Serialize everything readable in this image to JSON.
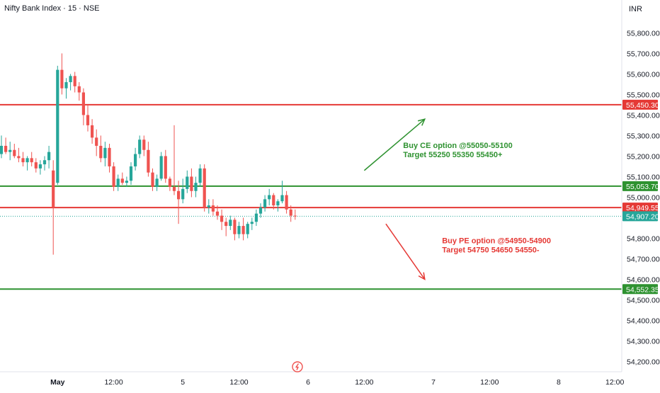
{
  "header": {
    "symbol_title": "Nifty Bank Index · 15 · NSE",
    "currency": "INR"
  },
  "colors": {
    "up": "#26a69a",
    "down": "#ef5350",
    "green_line": "#2e9230",
    "red_line": "#e53935",
    "last_price_line": "#26a69a"
  },
  "chart_data": {
    "type": "candlestick",
    "title": "Nifty Bank Index · 15 · NSE",
    "y_unit": "INR",
    "ylim": [
      54150,
      55960
    ],
    "y_ticks": [
      54200,
      54300,
      54400,
      54500,
      54600,
      54700,
      54800,
      55000,
      55100,
      55200,
      55300,
      55400,
      55500,
      55600,
      55700,
      55800
    ],
    "y_tick_labels": [
      "54,200.00",
      "54,300.00",
      "54,400.00",
      "54,500.00",
      "54,600.00",
      "54,700.00",
      "54,800.00",
      "55,000.00",
      "55,100.00",
      "55,200.00",
      "55,300.00",
      "55,400.00",
      "55,500.00",
      "55,600.00",
      "55,700.00",
      "55,800.00"
    ],
    "x_labels": [
      {
        "label": "May",
        "bar": 13
      },
      {
        "label": "12:00",
        "bar": 26
      },
      {
        "label": "5",
        "bar": 42
      },
      {
        "label": "12:00",
        "bar": 55
      },
      {
        "label": "6",
        "bar": 71
      },
      {
        "label": "12:00",
        "bar": 84
      },
      {
        "label": "7",
        "bar": 100
      },
      {
        "label": "12:00",
        "bar": 113
      },
      {
        "label": "8",
        "bar": 129
      },
      {
        "label": "12:00",
        "bar": 142
      }
    ],
    "candles": [
      {
        "o": 55210,
        "h": 55300,
        "l": 55190,
        "c": 55250
      },
      {
        "o": 55250,
        "h": 55290,
        "l": 55210,
        "c": 55220
      },
      {
        "o": 55220,
        "h": 55270,
        "l": 55180,
        "c": 55230
      },
      {
        "o": 55230,
        "h": 55260,
        "l": 55190,
        "c": 55200
      },
      {
        "o": 55200,
        "h": 55240,
        "l": 55170,
        "c": 55190
      },
      {
        "o": 55190,
        "h": 55220,
        "l": 55150,
        "c": 55170
      },
      {
        "o": 55170,
        "h": 55200,
        "l": 55130,
        "c": 55190
      },
      {
        "o": 55190,
        "h": 55220,
        "l": 55150,
        "c": 55170
      },
      {
        "o": 55170,
        "h": 55190,
        "l": 55120,
        "c": 55140
      },
      {
        "o": 55140,
        "h": 55180,
        "l": 55110,
        "c": 55160
      },
      {
        "o": 55160,
        "h": 55200,
        "l": 55130,
        "c": 55180
      },
      {
        "o": 55180,
        "h": 55250,
        "l": 55140,
        "c": 55220
      },
      {
        "o": 55130,
        "h": 55180,
        "l": 54720,
        "c": 54950
      },
      {
        "o": 55070,
        "h": 55640,
        "l": 55060,
        "c": 55620
      },
      {
        "o": 55620,
        "h": 55700,
        "l": 55500,
        "c": 55530
      },
      {
        "o": 55530,
        "h": 55580,
        "l": 55480,
        "c": 55560
      },
      {
        "o": 55560,
        "h": 55600,
        "l": 55520,
        "c": 55590
      },
      {
        "o": 55590,
        "h": 55610,
        "l": 55510,
        "c": 55540
      },
      {
        "o": 55540,
        "h": 55560,
        "l": 55470,
        "c": 55510
      },
      {
        "o": 55510,
        "h": 55530,
        "l": 55350,
        "c": 55400
      },
      {
        "o": 55400,
        "h": 55450,
        "l": 55320,
        "c": 55350
      },
      {
        "o": 55350,
        "h": 55380,
        "l": 55260,
        "c": 55290
      },
      {
        "o": 55290,
        "h": 55330,
        "l": 55200,
        "c": 55250
      },
      {
        "o": 55250,
        "h": 55300,
        "l": 55170,
        "c": 55190
      },
      {
        "o": 55190,
        "h": 55270,
        "l": 55150,
        "c": 55240
      },
      {
        "o": 55240,
        "h": 55260,
        "l": 55120,
        "c": 55150
      },
      {
        "o": 55150,
        "h": 55170,
        "l": 55030,
        "c": 55050
      },
      {
        "o": 55050,
        "h": 55110,
        "l": 55030,
        "c": 55090
      },
      {
        "o": 55090,
        "h": 55120,
        "l": 55060,
        "c": 55070
      },
      {
        "o": 55070,
        "h": 55100,
        "l": 55050,
        "c": 55080
      },
      {
        "o": 55080,
        "h": 55170,
        "l": 55060,
        "c": 55150
      },
      {
        "o": 55150,
        "h": 55240,
        "l": 55130,
        "c": 55210
      },
      {
        "o": 55210,
        "h": 55300,
        "l": 55190,
        "c": 55280
      },
      {
        "o": 55280,
        "h": 55300,
        "l": 55200,
        "c": 55230
      },
      {
        "o": 55230,
        "h": 55270,
        "l": 55100,
        "c": 55120
      },
      {
        "o": 55120,
        "h": 55140,
        "l": 55030,
        "c": 55050
      },
      {
        "o": 55050,
        "h": 55110,
        "l": 55030,
        "c": 55090
      },
      {
        "o": 55090,
        "h": 55220,
        "l": 55080,
        "c": 55200
      },
      {
        "o": 55200,
        "h": 55230,
        "l": 55070,
        "c": 55090
      },
      {
        "o": 55090,
        "h": 55100,
        "l": 55030,
        "c": 55050
      },
      {
        "o": 55050,
        "h": 55350,
        "l": 55010,
        "c": 55030
      },
      {
        "o": 55030,
        "h": 55080,
        "l": 54870,
        "c": 54990
      },
      {
        "o": 54990,
        "h": 55090,
        "l": 54970,
        "c": 55040
      },
      {
        "o": 55040,
        "h": 55130,
        "l": 55020,
        "c": 55100
      },
      {
        "o": 55100,
        "h": 55140,
        "l": 55000,
        "c": 55030
      },
      {
        "o": 55030,
        "h": 55100,
        "l": 55000,
        "c": 55070
      },
      {
        "o": 55070,
        "h": 55160,
        "l": 55050,
        "c": 55140
      },
      {
        "o": 55140,
        "h": 55160,
        "l": 54930,
        "c": 54950
      },
      {
        "o": 54950,
        "h": 54990,
        "l": 54920,
        "c": 54960
      },
      {
        "o": 54960,
        "h": 54990,
        "l": 54910,
        "c": 54930
      },
      {
        "o": 54930,
        "h": 54960,
        "l": 54890,
        "c": 54910
      },
      {
        "o": 54910,
        "h": 54940,
        "l": 54840,
        "c": 54880
      },
      {
        "o": 54880,
        "h": 54900,
        "l": 54810,
        "c": 54860
      },
      {
        "o": 54860,
        "h": 54910,
        "l": 54840,
        "c": 54890
      },
      {
        "o": 54890,
        "h": 54900,
        "l": 54790,
        "c": 54820
      },
      {
        "o": 54820,
        "h": 54880,
        "l": 54800,
        "c": 54860
      },
      {
        "o": 54860,
        "h": 54900,
        "l": 54790,
        "c": 54820
      },
      {
        "o": 54820,
        "h": 54880,
        "l": 54800,
        "c": 54870
      },
      {
        "o": 54870,
        "h": 54900,
        "l": 54840,
        "c": 54880
      },
      {
        "o": 54880,
        "h": 54940,
        "l": 54860,
        "c": 54920
      },
      {
        "o": 54920,
        "h": 54970,
        "l": 54900,
        "c": 54950
      },
      {
        "o": 54950,
        "h": 55010,
        "l": 54930,
        "c": 54990
      },
      {
        "o": 54990,
        "h": 55040,
        "l": 54960,
        "c": 55010
      },
      {
        "o": 55010,
        "h": 55020,
        "l": 54940,
        "c": 54960
      },
      {
        "o": 54960,
        "h": 54990,
        "l": 54930,
        "c": 54980
      },
      {
        "o": 54980,
        "h": 55080,
        "l": 54970,
        "c": 55010
      },
      {
        "o": 55010,
        "h": 55030,
        "l": 54920,
        "c": 54940
      },
      {
        "o": 54940,
        "h": 54960,
        "l": 54880,
        "c": 54910
      },
      {
        "o": 54910,
        "h": 54940,
        "l": 54890,
        "c": 54907
      }
    ],
    "levels": [
      {
        "price": 55450.3,
        "label": "55,450.30",
        "kind": "red"
      },
      {
        "price": 55053.7,
        "label": "55,053.70",
        "kind": "green"
      },
      {
        "price": 54949.55,
        "label": "54,949.55",
        "kind": "red"
      },
      {
        "price": 54552.35,
        "label": "54,552.35",
        "kind": "green"
      }
    ],
    "last_price": {
      "price": 54907.2,
      "label": "54,907.20"
    },
    "annotations": [
      {
        "line1": "Buy CE option @55050-55100",
        "line2": "Target 55250 55350 55450+",
        "kind": "green",
        "arrow": {
          "from_bar": 84,
          "from_price": 55130,
          "to_bar": 98,
          "to_price": 55380
        },
        "text_bar": 93,
        "text_price": 55240
      },
      {
        "line1": "Buy PE option @54950-54900",
        "line2": "Target 54750 54650 54550-",
        "kind": "red",
        "arrow": {
          "from_bar": 89,
          "from_price": 54870,
          "to_bar": 98,
          "to_price": 54600
        },
        "text_bar": 102,
        "text_price": 54775
      }
    ]
  }
}
